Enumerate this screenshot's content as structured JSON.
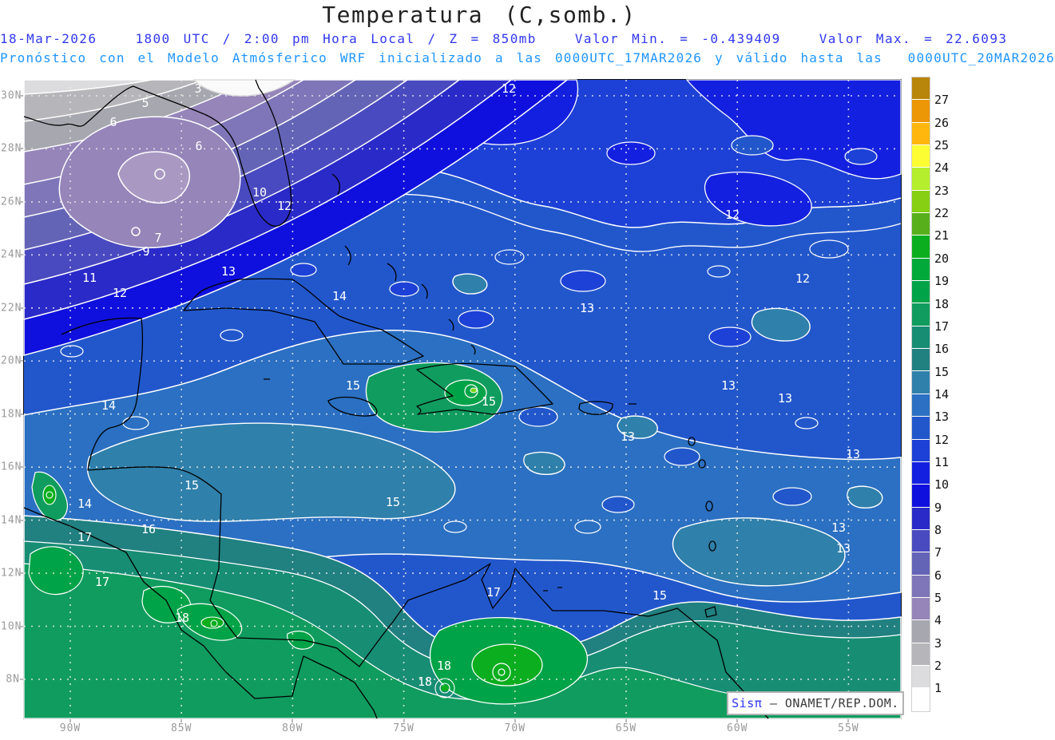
{
  "header": {
    "title": "Temperatura (C,somb.)",
    "forecast_line": "18-Mar-2026   1800 UTC / 2:00 pm Hora Local / Z = 850mb   Valor Min. = -0.439409   Valor Max. = 22.6093",
    "model_line": "Pronóstico con el Modelo Atmósferico WRF inicializado a las 0000UTC_17MAR2026 y válido hasta las  0000UTC_20MAR2026"
  },
  "credit": {
    "system": "Sisπ",
    "agency": "– ONAMET/REP.DOM."
  },
  "colors": {
    "forecast_line": "#3238ee",
    "model_line": "#1e95ff",
    "axis_labels": "#9a9a9a",
    "contour_label": "#ffffff",
    "credit_system": "#2d35f0",
    "credit_agency": "#3a3a3a"
  },
  "chart_data": {
    "type": "heatmap",
    "title": "Temperatura (C,somb.)",
    "variable": "Temperatura",
    "units": "C",
    "level": "850mb",
    "valid_time": "18-Mar-2026 1800 UTC / 2:00 pm Hora Local",
    "init_time": "0000UTC_17MAR2026",
    "end_time": "0000UTC_20MAR2026",
    "model": "WRF",
    "value_min": -0.439409,
    "value_max": 22.6093,
    "contour_interval": 1,
    "grid": "dotted",
    "legend_position": "right",
    "y_ticks": [
      "30N",
      "28N",
      "26N",
      "24N",
      "22N",
      "20N",
      "18N",
      "16N",
      "14N",
      "12N",
      "10N",
      "8N"
    ],
    "x_ticks": [
      "90W",
      "85W",
      "80W",
      "75W",
      "70W",
      "65W",
      "60W",
      "55W"
    ],
    "colorbar_levels": [
      1,
      2,
      3,
      4,
      5,
      6,
      7,
      8,
      9,
      10,
      11,
      12,
      13,
      14,
      15,
      16,
      17,
      18,
      19,
      20,
      21,
      22,
      23,
      24,
      25,
      26,
      27
    ],
    "colorbar_band_colors_bottom_to_top": [
      "#ffffff",
      "#dcdcdf",
      "#b6b6ba",
      "#a7a7af",
      "#9585b9",
      "#7e76b8",
      "#6464b7",
      "#4a4ac0",
      "#2a2ac9",
      "#0f10dd",
      "#1420df",
      "#1d41d6",
      "#2257cc",
      "#2b70c2",
      "#2f80ab",
      "#218080",
      "#178d74",
      "#109c5e",
      "#00a347",
      "#00a93a",
      "#0bae1e",
      "#57b01b",
      "#86cf13",
      "#b4ee2c",
      "#fdfd33",
      "#ffb70e",
      "#ec9706",
      "#b8860b"
    ],
    "contour_labels": [
      {
        "v": "3",
        "x": 218,
        "y": 16
      },
      {
        "v": "5",
        "x": 152,
        "y": 34
      },
      {
        "v": "6",
        "x": 112,
        "y": 58
      },
      {
        "v": "6",
        "x": 219,
        "y": 88
      },
      {
        "v": "10",
        "x": 295,
        "y": 146
      },
      {
        "v": "12",
        "x": 326,
        "y": 163
      },
      {
        "v": "7",
        "x": 168,
        "y": 203
      },
      {
        "v": "9",
        "x": 153,
        "y": 220
      },
      {
        "v": "11",
        "x": 82,
        "y": 253
      },
      {
        "v": "12",
        "x": 120,
        "y": 272
      },
      {
        "v": "13",
        "x": 256,
        "y": 245
      },
      {
        "v": "12",
        "x": 607,
        "y": 16
      },
      {
        "v": "12",
        "x": 887,
        "y": 174
      },
      {
        "v": "12",
        "x": 975,
        "y": 254
      },
      {
        "v": "13",
        "x": 705,
        "y": 291
      },
      {
        "v": "14",
        "x": 395,
        "y": 276
      },
      {
        "v": "14",
        "x": 106,
        "y": 413
      },
      {
        "v": "13",
        "x": 882,
        "y": 388
      },
      {
        "v": "13",
        "x": 953,
        "y": 404
      },
      {
        "v": "15",
        "x": 412,
        "y": 388
      },
      {
        "v": "15",
        "x": 582,
        "y": 408
      },
      {
        "v": "13",
        "x": 756,
        "y": 452
      },
      {
        "v": "13",
        "x": 1038,
        "y": 474
      },
      {
        "v": "15",
        "x": 462,
        "y": 534
      },
      {
        "v": "15",
        "x": 210,
        "y": 513
      },
      {
        "v": "14",
        "x": 76,
        "y": 536
      },
      {
        "v": "17",
        "x": 76,
        "y": 578
      },
      {
        "v": "16",
        "x": 156,
        "y": 568
      },
      {
        "v": "13",
        "x": 1020,
        "y": 566
      },
      {
        "v": "17",
        "x": 98,
        "y": 634
      },
      {
        "v": "17",
        "x": 588,
        "y": 647
      },
      {
        "v": "15",
        "x": 796,
        "y": 651
      },
      {
        "v": "18",
        "x": 198,
        "y": 679
      },
      {
        "v": "18",
        "x": 526,
        "y": 739
      },
      {
        "v": "18",
        "x": 502,
        "y": 759
      },
      {
        "v": "13",
        "x": 1026,
        "y": 592
      }
    ]
  }
}
